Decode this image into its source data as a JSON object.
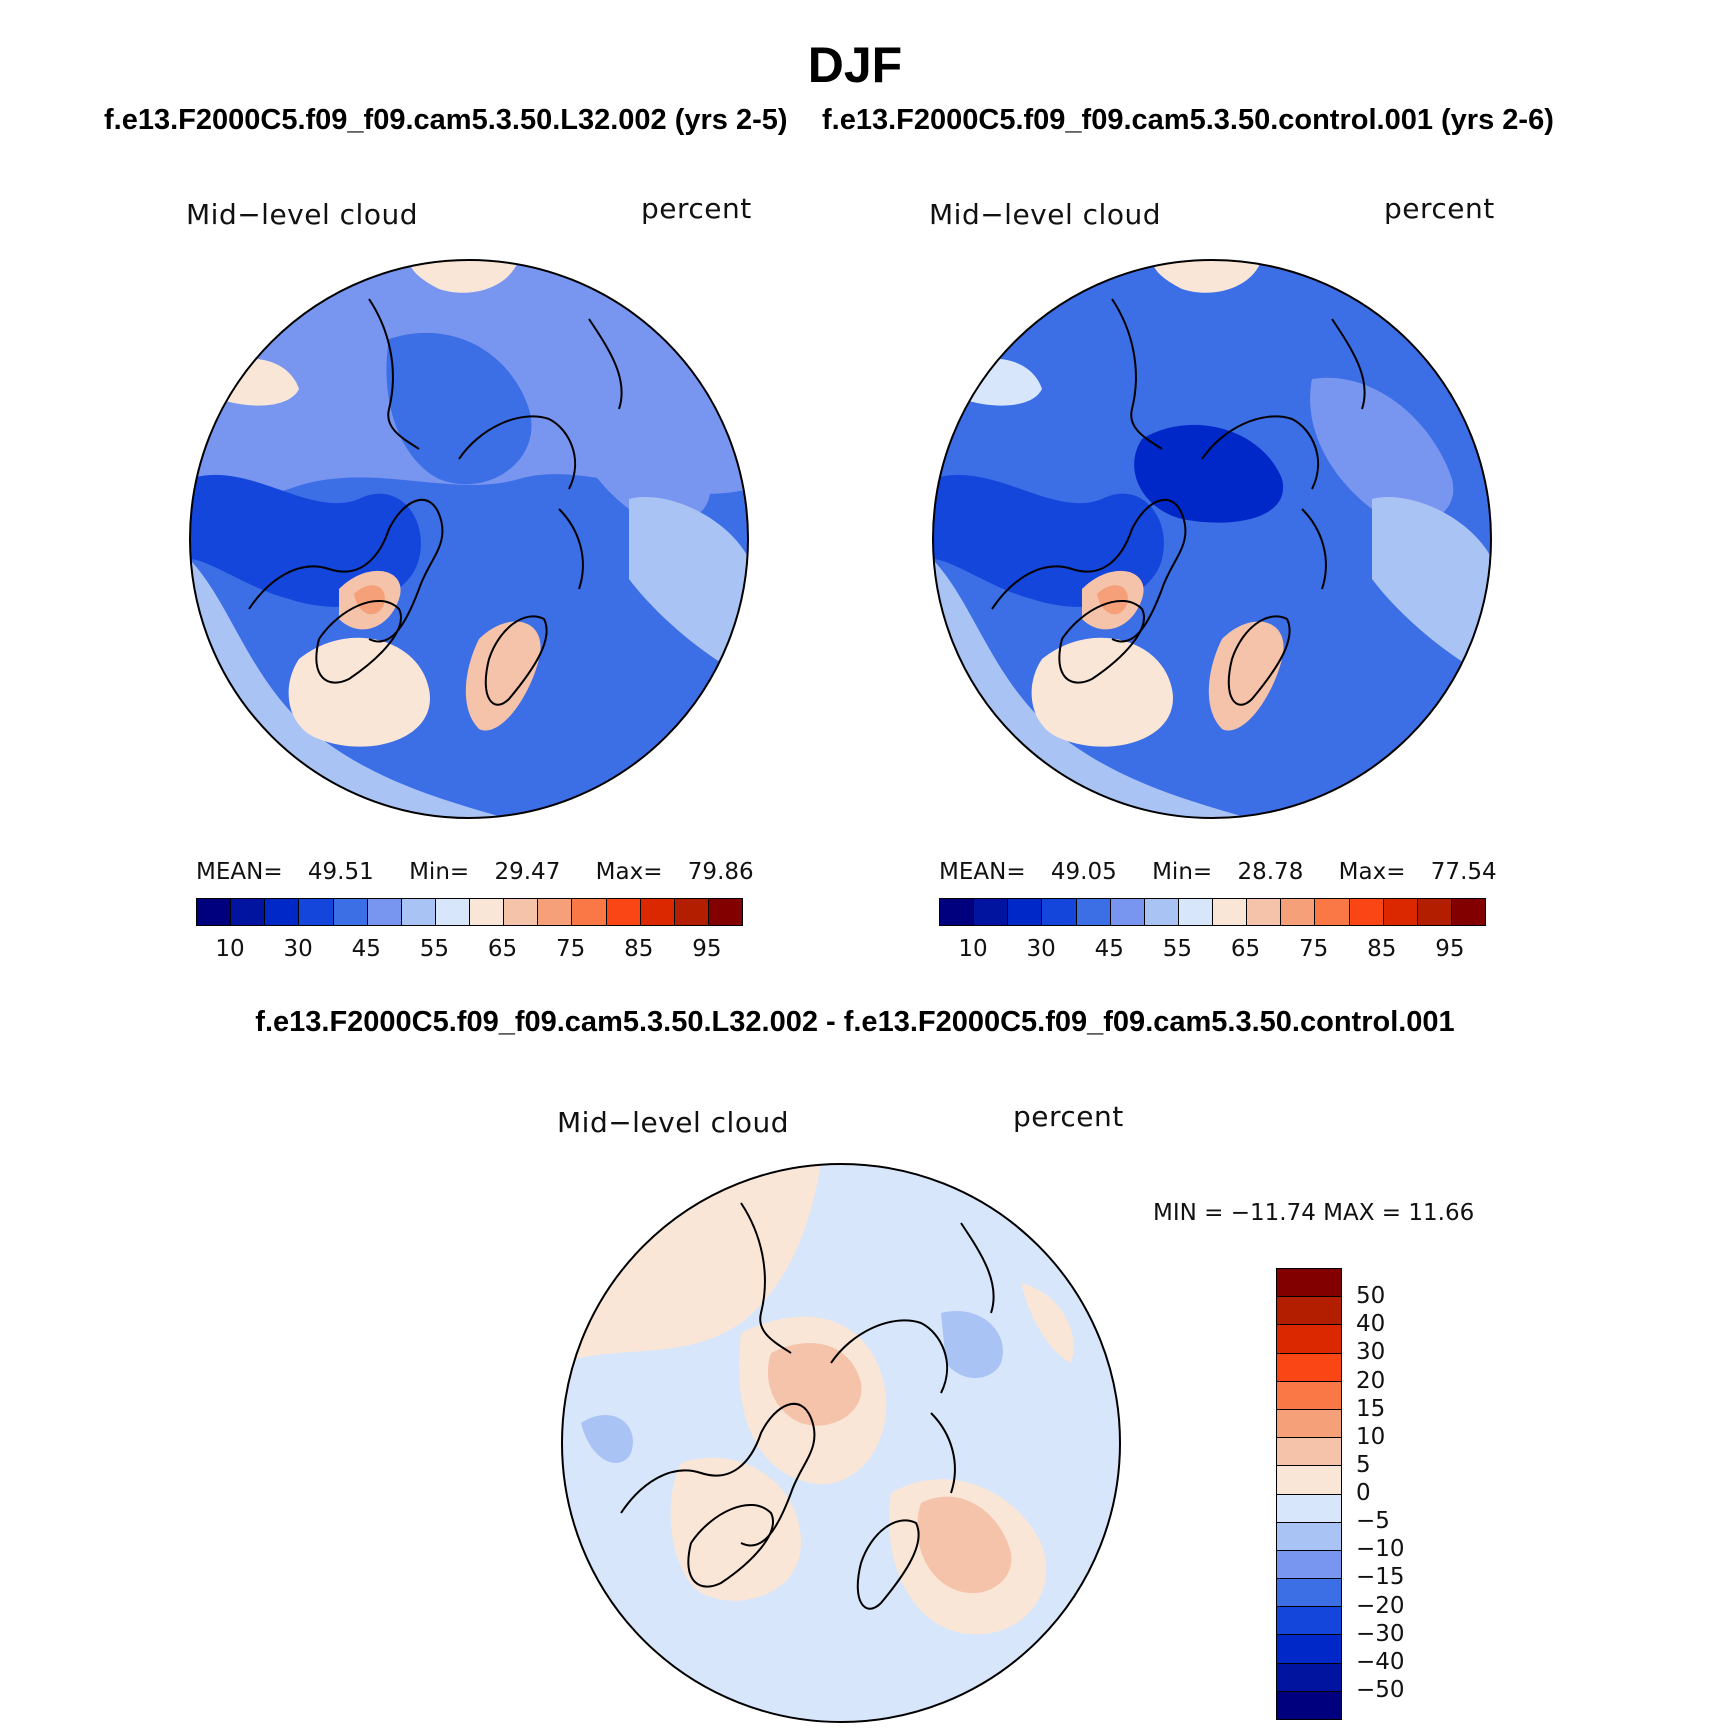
{
  "figure": {
    "title": "DJF",
    "panel_left_title": "f.e13.F2000C5.f09_f09.cam5.3.50.L32.002 (yrs 2-5)",
    "panel_right_title": "f.e13.F2000C5.f09_f09.cam5.3.50.control.001 (yrs 2-6)",
    "diff_title": "f.e13.F2000C5.f09_f09.cam5.3.50.L32.002 - f.e13.F2000C5.f09_f09.cam5.3.50.control.001"
  },
  "panels": [
    {
      "variable": "Mid−level cloud",
      "units": "percent",
      "mean_label": "MEAN=",
      "mean": "49.51",
      "min_label": "Min=",
      "min": "29.47",
      "max_label": "Max=",
      "max": "79.86"
    },
    {
      "variable": "Mid−level cloud",
      "units": "percent",
      "mean_label": "MEAN=",
      "mean": "49.05",
      "min_label": "Min=",
      "min": "28.78",
      "max_label": "Max=",
      "max": "77.54"
    },
    {
      "variable": "Mid−level cloud",
      "units": "percent",
      "min_max_text": "MIN = −11.74 MAX =   11.66"
    }
  ],
  "colorbar_abs": {
    "colors": [
      "#00007f",
      "#0014a0",
      "#0028c8",
      "#1446dc",
      "#3c6ee6",
      "#7896f0",
      "#aac3f5",
      "#d7e6fa",
      "#fae6d7",
      "#f5c3aa",
      "#f5a078",
      "#fa7846",
      "#fa4614",
      "#dc2800",
      "#b41e00",
      "#820000"
    ],
    "tick_labels": [
      "10",
      "30",
      "45",
      "55",
      "65",
      "75",
      "85",
      "95"
    ]
  },
  "colorbar_diff": {
    "colors": [
      "#820000",
      "#b41e00",
      "#dc2800",
      "#fa4614",
      "#fa7846",
      "#f5a078",
      "#f5c3aa",
      "#fae6d7",
      "#d7e6fa",
      "#aac3f5",
      "#7896f0",
      "#3c6ee6",
      "#1446dc",
      "#0028c8",
      "#0014a0",
      "#00007f"
    ],
    "tick_labels": [
      "50",
      "40",
      "30",
      "20",
      "15",
      "10",
      "5",
      "0",
      "−5",
      "−10",
      "−15",
      "−20",
      "−30",
      "−40",
      "−50"
    ]
  }
}
